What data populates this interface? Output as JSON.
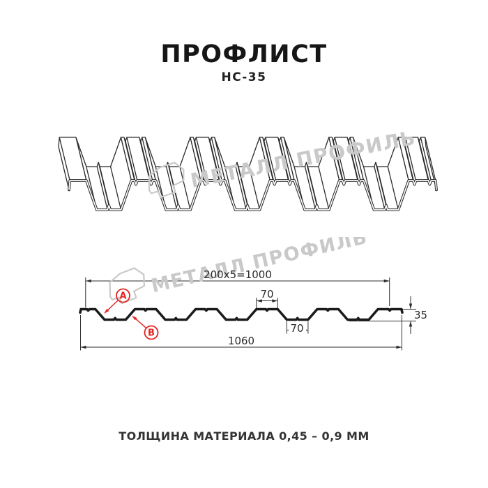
{
  "header": {
    "title": "ПРОФЛИСТ",
    "subtitle": "НС-35"
  },
  "footer": {
    "note": "ТОЛЩИНА МАТЕРИАЛА 0,45 – 0,9 ММ"
  },
  "watermark": {
    "text": "МЕТАЛЛ ПРОФИЛЬ",
    "color": "#c9c9c9"
  },
  "drawing": {
    "line_color": "#2b2b2b",
    "profile_color": "#1b1b1b",
    "dim_color": "#2e2e2e",
    "marker_color": "#e42320",
    "labels": {
      "top_width": "200x5=1000",
      "rib_top": "70",
      "rib_bottom": "70",
      "total_width": "1060",
      "height": "35"
    },
    "markers": [
      {
        "id": "A"
      },
      {
        "id": "B"
      }
    ],
    "profile_mm": {
      "total_width": 1060,
      "height": 35,
      "period": 200,
      "periods": 5,
      "crest_flat": 70,
      "valley_flat": 70,
      "slope_run": 30,
      "left_crest_end": 50,
      "right_crest_start": 980,
      "groove_width": 8,
      "groove_depth_ratio": 0.13
    }
  }
}
